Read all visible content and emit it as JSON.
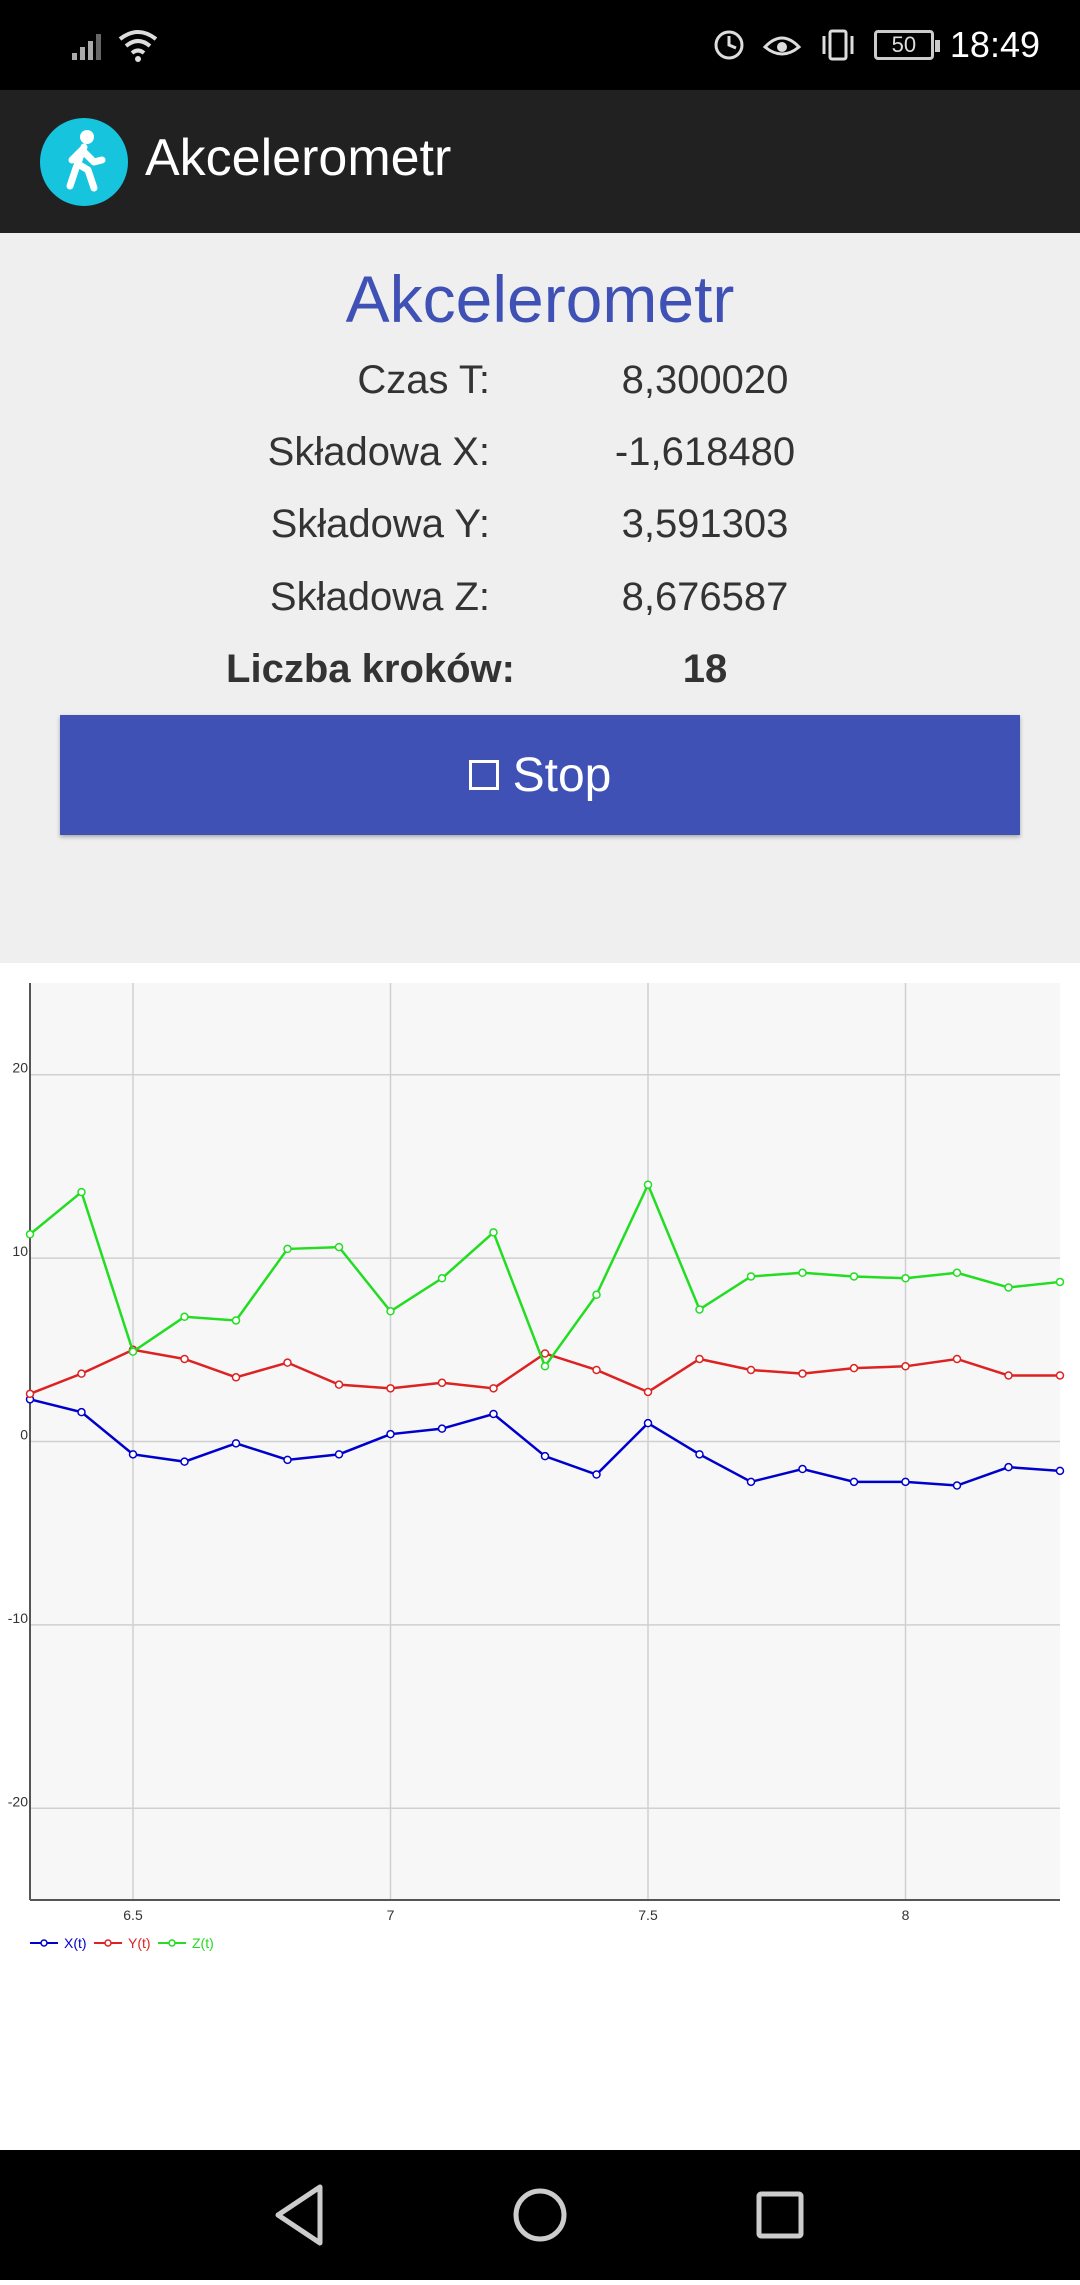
{
  "status_bar": {
    "time": "18:49",
    "battery": "50",
    "icons": [
      "signal-icon",
      "wifi-icon",
      "data-saver-icon",
      "eye-comfort-icon",
      "vibrate-icon",
      "battery-icon"
    ]
  },
  "app_bar": {
    "title": "Akcelerometr",
    "icon": "walking-person-icon",
    "icon_color": "#17c4dd"
  },
  "main": {
    "heading": "Akcelerometr",
    "rows": [
      {
        "label": "Czas T:",
        "value": "8,300020"
      },
      {
        "label": "Składowa X:",
        "value": "-1,618480"
      },
      {
        "label": "Składowa Y:",
        "value": "3,591303"
      },
      {
        "label": "Składowa Z:",
        "value": "8,676587"
      },
      {
        "label": "Liczba kroków:",
        "value": "18"
      }
    ],
    "stop_button": {
      "label": "Stop",
      "icon": "stop-square-icon",
      "color": "#3f51b5"
    }
  },
  "chart_data": {
    "type": "line",
    "xlim": [
      6.3,
      8.3
    ],
    "ylim": [
      -25,
      25
    ],
    "x_ticks": [
      "6.5",
      "7",
      "7.5",
      "8"
    ],
    "x_tick_values": [
      6.5,
      7,
      7.5,
      8
    ],
    "y_ticks": [
      "20",
      "10",
      "0",
      "-10",
      "-20"
    ],
    "y_tick_values": [
      20,
      10,
      0,
      -10,
      -20
    ],
    "grid": true,
    "legend_position": "bottom-left",
    "x": [
      6.3,
      6.4,
      6.5,
      6.6,
      6.7,
      6.8,
      6.9,
      7.0,
      7.1,
      7.2,
      7.3,
      7.4,
      7.5,
      7.6,
      7.7,
      7.8,
      7.9,
      8.0,
      8.1,
      8.2,
      8.3
    ],
    "series": [
      {
        "name": "X(t)",
        "color": "#0000cc",
        "values": [
          2.3,
          1.6,
          -0.7,
          -1.1,
          -0.1,
          -1.0,
          -0.7,
          0.4,
          0.7,
          1.5,
          -0.8,
          -1.8,
          1.0,
          -0.7,
          -2.2,
          -1.5,
          -2.2,
          -2.2,
          -2.4,
          -1.4,
          -1.6
        ]
      },
      {
        "name": "Y(t)",
        "color": "#dd2222",
        "values": [
          2.6,
          3.7,
          5.0,
          4.5,
          3.5,
          4.3,
          3.1,
          2.9,
          3.2,
          2.9,
          4.8,
          3.9,
          2.7,
          4.5,
          3.9,
          3.7,
          4.0,
          4.1,
          4.5,
          3.6,
          3.6
        ]
      },
      {
        "name": "Z(t)",
        "color": "#22dd22",
        "values": [
          11.3,
          13.6,
          4.9,
          6.8,
          6.6,
          10.5,
          10.6,
          7.1,
          8.9,
          11.4,
          4.1,
          8.0,
          14.0,
          7.2,
          9.0,
          9.2,
          9.0,
          8.9,
          9.2,
          8.4,
          8.7
        ]
      }
    ]
  },
  "nav_bar": {
    "icons": [
      "back-triangle-icon",
      "home-circle-icon",
      "recents-square-icon"
    ]
  }
}
